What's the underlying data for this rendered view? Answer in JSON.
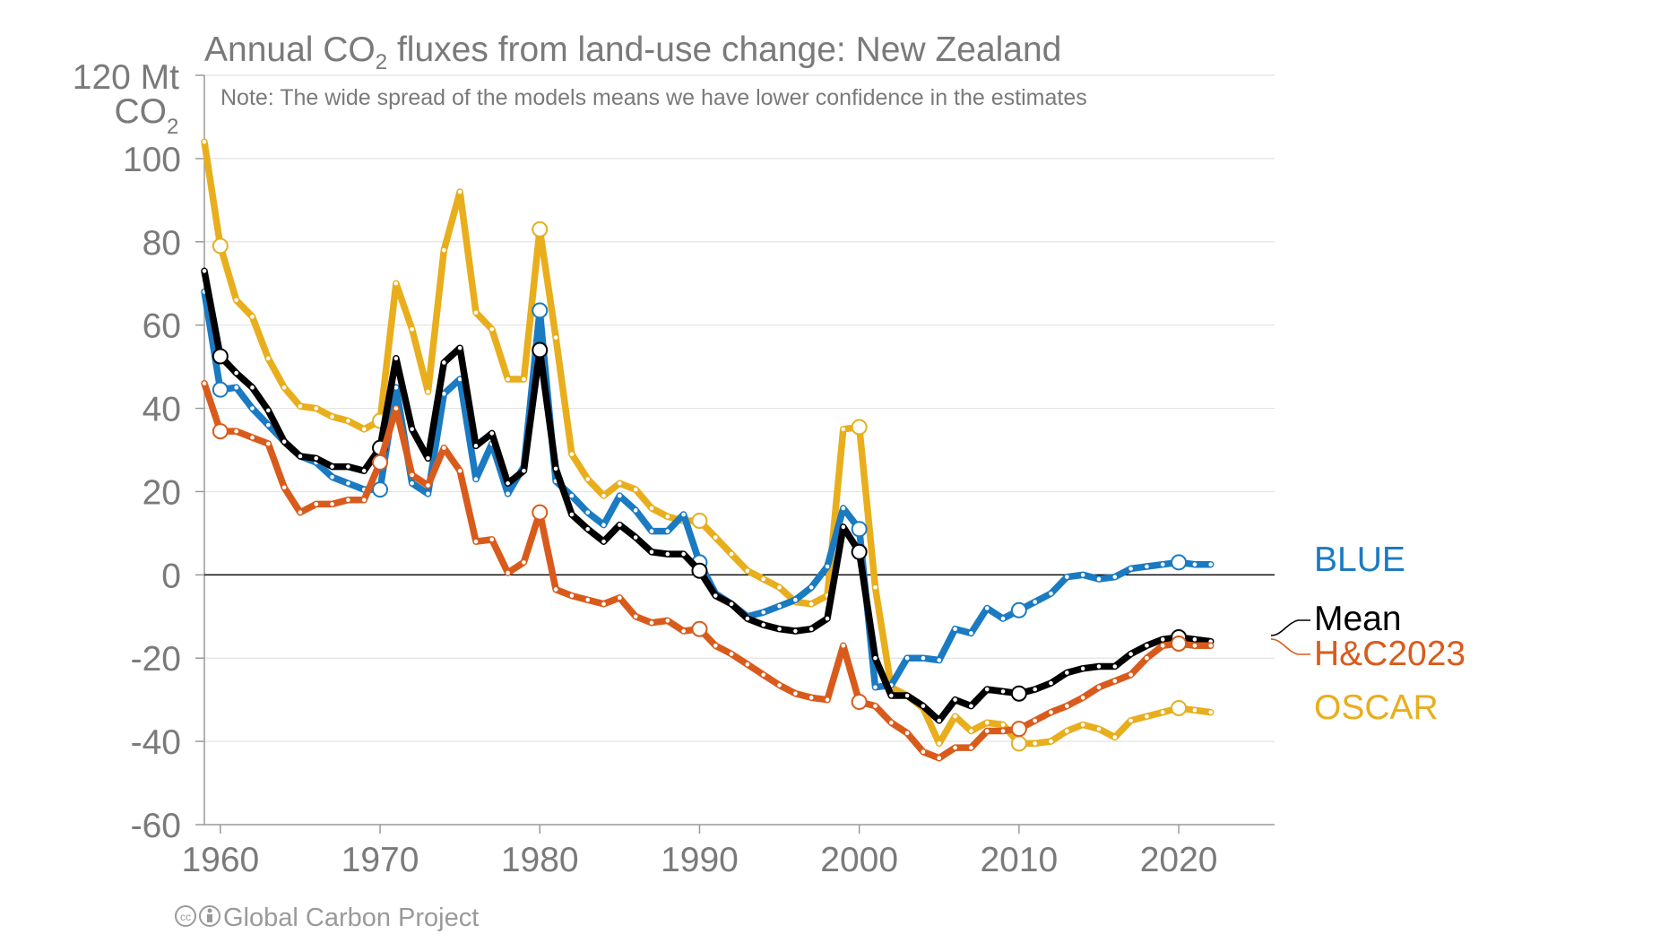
{
  "chart_data": {
    "type": "line",
    "title_main": "Annual CO",
    "title_sub": "2",
    "title_rest": " fluxes from land-use change: New Zealand",
    "note": "Note: The wide spread of the models means we have lower confidence in the estimates",
    "ylabel_top": "120 Mt",
    "ylabel_unit": "CO",
    "ylabel_unit_sub": "2",
    "ylim": [
      -60,
      120
    ],
    "xlim": [
      1959,
      2026
    ],
    "yticks": [
      100,
      80,
      60,
      40,
      20,
      0,
      -20,
      -40,
      -60
    ],
    "ytick_labels": [
      "100",
      "80",
      "60",
      "40",
      "20",
      "0",
      "-20",
      "-40",
      "-60"
    ],
    "xticks": [
      1960,
      1970,
      1980,
      1990,
      2000,
      2010,
      2020
    ],
    "xtick_labels": [
      "1960",
      "1970",
      "1980",
      "1990",
      "2000",
      "2010",
      "2020"
    ],
    "grid": true,
    "legend_position": "right",
    "x": [
      1959,
      1960,
      1961,
      1962,
      1963,
      1964,
      1965,
      1966,
      1967,
      1968,
      1969,
      1970,
      1971,
      1972,
      1973,
      1974,
      1975,
      1976,
      1977,
      1978,
      1979,
      1980,
      1981,
      1982,
      1983,
      1984,
      1985,
      1986,
      1987,
      1988,
      1989,
      1990,
      1991,
      1992,
      1993,
      1994,
      1995,
      1996,
      1997,
      1998,
      1999,
      2000,
      2001,
      2002,
      2003,
      2004,
      2005,
      2006,
      2007,
      2008,
      2009,
      2010,
      2011,
      2012,
      2013,
      2014,
      2015,
      2016,
      2017,
      2018,
      2019,
      2020,
      2021,
      2022
    ],
    "series": [
      {
        "name": "OSCAR",
        "color": "#e8ae1c",
        "values": [
          104,
          79,
          66,
          62,
          52,
          45,
          40.5,
          40,
          38,
          37,
          35,
          37,
          70,
          59,
          44,
          78,
          92,
          63,
          59,
          47,
          47,
          83,
          57,
          29,
          23,
          19,
          22,
          20.5,
          16,
          14,
          13,
          13,
          9,
          5,
          1,
          -1,
          -3,
          -6.5,
          -7,
          -5,
          35,
          35.5,
          -3,
          -27,
          -29,
          -32,
          -40.5,
          -34,
          -37.5,
          -35.5,
          -36,
          -40.5,
          -40.5,
          -40,
          -37.5,
          -36,
          -37,
          -39,
          -35,
          -34,
          -33,
          -32,
          -32.5,
          -33
        ]
      },
      {
        "name": "BLUE",
        "color": "#1a7ac2",
        "values": [
          68,
          44.5,
          45,
          40,
          36,
          32,
          28.5,
          27,
          23.5,
          22,
          20.5,
          20.5,
          45,
          22,
          19.5,
          43.5,
          47,
          23,
          31.5,
          19.5,
          26,
          63.5,
          22.5,
          19,
          15,
          12,
          19,
          15.5,
          10.5,
          10.5,
          14.5,
          3,
          -4.5,
          -7,
          -10,
          -9,
          -7.5,
          -6,
          -3,
          2,
          16,
          11,
          -27,
          -26.5,
          -20,
          -20,
          -20.5,
          -13,
          -14,
          -8,
          -10.5,
          -8.5,
          -6.5,
          -4.5,
          -0.5,
          0,
          -1,
          -0.5,
          1.5,
          2,
          2.5,
          3,
          2.5,
          2.5
        ]
      },
      {
        "name": "Mean",
        "color": "#000000",
        "values": [
          73,
          52.5,
          48.5,
          45,
          39.5,
          32,
          28.5,
          28,
          26,
          26,
          25,
          30.5,
          52,
          35,
          28,
          51,
          54.5,
          31,
          34,
          22,
          25,
          54,
          25.5,
          14.5,
          11,
          8,
          12,
          9,
          5.5,
          5,
          5,
          1,
          -5,
          -7,
          -10.5,
          -12,
          -13,
          -13.5,
          -13,
          -10.5,
          11.5,
          5.5,
          -20,
          -29,
          -29,
          -31.5,
          -35,
          -30,
          -31.5,
          -27.5,
          -28,
          -28.5,
          -27.5,
          -26,
          -23.5,
          -22.5,
          -22,
          -22,
          -19,
          -17,
          -15.5,
          -15,
          -15.5,
          -16
        ]
      },
      {
        "name": "H&C2023",
        "color": "#d95b1c",
        "values": [
          46,
          34.5,
          34.5,
          33,
          31.5,
          21,
          15,
          17,
          17,
          18,
          18,
          27,
          40,
          24,
          21.5,
          30.5,
          25,
          8,
          8.5,
          0.5,
          3,
          15,
          -3.5,
          -5,
          -6,
          -7,
          -5.5,
          -10,
          -11.5,
          -11,
          -13.5,
          -13,
          -17,
          -19,
          -21.5,
          -24,
          -26.5,
          -28.5,
          -29.5,
          -30,
          -17,
          -30.5,
          -31.5,
          -35.5,
          -38,
          -42.5,
          -44,
          -41.5,
          -41.5,
          -37.5,
          -37.5,
          -37,
          -35,
          -33,
          -31.5,
          -29.5,
          -27,
          -25.5,
          -24,
          -20,
          -17,
          -16.5,
          -17,
          -17
        ]
      }
    ],
    "highlighted_years": [
      1960,
      1970,
      1980,
      1990,
      2000,
      2010,
      2020
    ]
  },
  "legend": {
    "blue": "BLUE",
    "mean": "Mean",
    "hc": "H&C2023",
    "oscar": "OSCAR"
  },
  "credit": "Global Carbon Project",
  "credit_icons": [
    "cc-icon",
    "by-icon"
  ]
}
